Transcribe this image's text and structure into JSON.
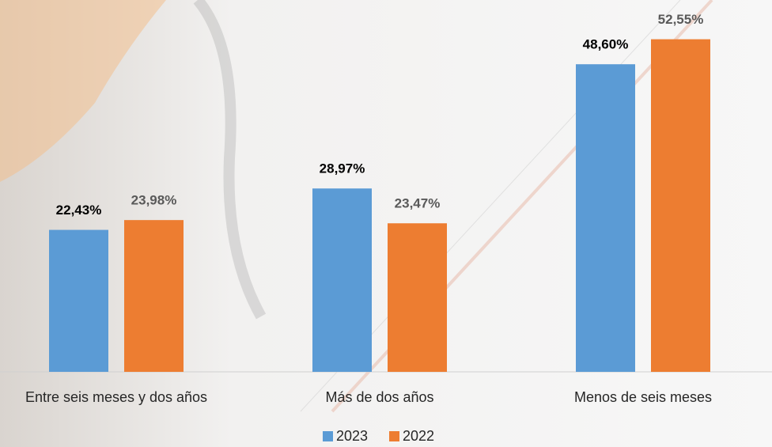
{
  "chart_data": {
    "type": "bar",
    "categories": [
      "Entre seis meses y dos años",
      "Más de dos años",
      "Menos de seis meses"
    ],
    "series": [
      {
        "name": "2023",
        "color": "#5b9bd5",
        "values": [
          22.43,
          28.97,
          48.6
        ],
        "value_labels": [
          "22,43%",
          "28,97%",
          "48,60%"
        ],
        "label_color": "#000000"
      },
      {
        "name": "2022",
        "color": "#ed7d31",
        "values": [
          23.98,
          23.47,
          52.55
        ],
        "value_labels": [
          "23,98%",
          "23,47%",
          "52,55%"
        ],
        "label_color": "#595959"
      }
    ],
    "legend": "bottom"
  }
}
